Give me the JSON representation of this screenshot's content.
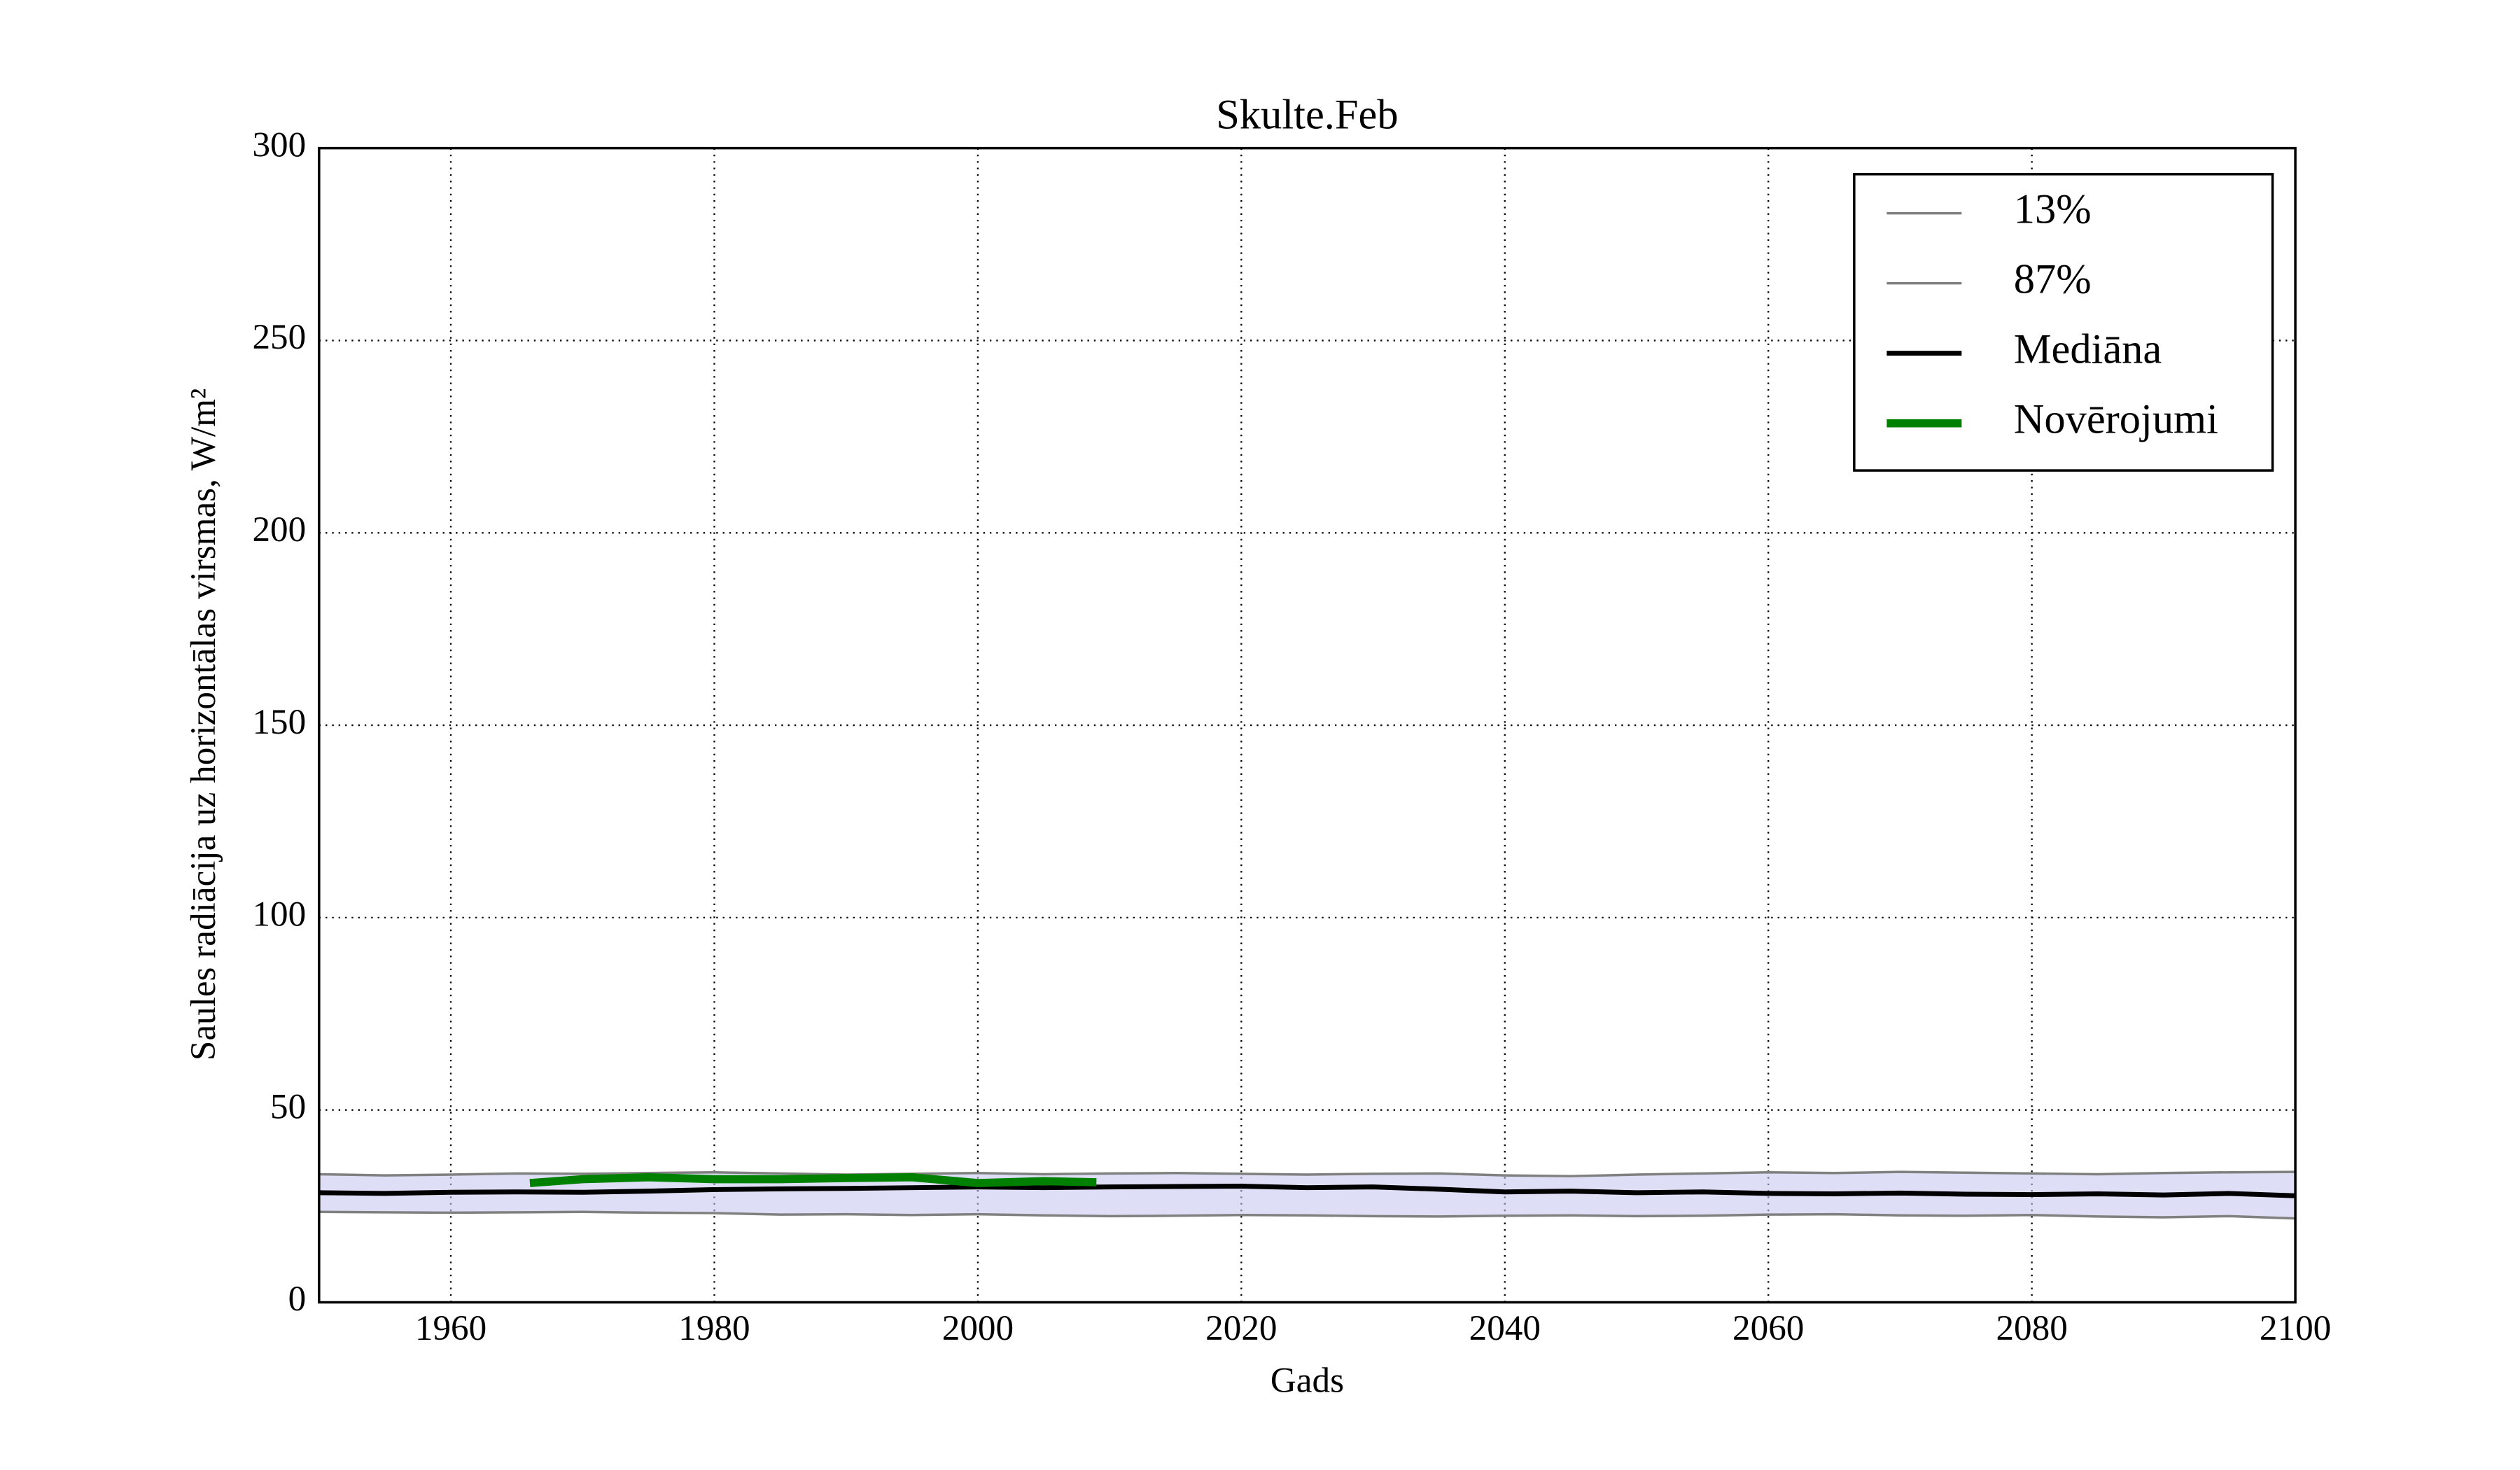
{
  "chart_data": {
    "type": "line",
    "title": "Skulte.Feb",
    "xlabel": "Gads",
    "ylabel": "Saules radiācija uz horizontālas virsmas, W/m²",
    "x": [
      1950,
      1955,
      1960,
      1965,
      1970,
      1975,
      1980,
      1985,
      1990,
      1995,
      2000,
      2005,
      2010,
      2015,
      2020,
      2025,
      2030,
      2035,
      2040,
      2045,
      2050,
      2055,
      2060,
      2065,
      2070,
      2075,
      2080,
      2085,
      2090,
      2095,
      2100
    ],
    "series": [
      {
        "name": "13%",
        "color": "#808080",
        "width": 1.5,
        "values": [
          23.5,
          23.4,
          23.3,
          23.4,
          23.5,
          23.3,
          23.2,
          22.8,
          22.9,
          22.7,
          22.9,
          22.6,
          22.4,
          22.5,
          22.7,
          22.6,
          22.4,
          22.3,
          22.5,
          22.6,
          22.4,
          22.5,
          22.8,
          22.9,
          22.6,
          22.5,
          22.7,
          22.3,
          22.1,
          22.4,
          21.8
        ]
      },
      {
        "name": "87%",
        "color": "#808080",
        "width": 1.5,
        "values": [
          33.3,
          33.0,
          33.2,
          33.5,
          33.4,
          33.6,
          33.8,
          33.5,
          33.2,
          33.4,
          33.6,
          33.3,
          33.5,
          33.6,
          33.4,
          33.2,
          33.4,
          33.5,
          33.0,
          32.8,
          33.2,
          33.5,
          33.8,
          33.6,
          33.9,
          33.7,
          33.5,
          33.3,
          33.6,
          33.8,
          33.9
        ]
      },
      {
        "name": "Mediāna",
        "color": "#000000",
        "width": 3,
        "values": [
          28.5,
          28.3,
          28.6,
          28.7,
          28.6,
          28.9,
          29.3,
          29.5,
          29.6,
          29.8,
          30.0,
          29.8,
          30.0,
          30.1,
          30.2,
          29.8,
          30.0,
          29.4,
          28.7,
          28.9,
          28.5,
          28.7,
          28.3,
          28.2,
          28.4,
          28.1,
          28.0,
          28.2,
          27.9,
          28.3,
          27.7
        ]
      },
      {
        "name": "Novērojumi",
        "color": "#008000",
        "width": 5,
        "x": [
          1966,
          1970,
          1975,
          1980,
          1985,
          1990,
          1995,
          2000,
          2005,
          2009
        ],
        "values": [
          31.0,
          32.0,
          32.5,
          32.0,
          32.0,
          32.3,
          32.5,
          31.0,
          31.5,
          31.2
        ]
      }
    ],
    "xlim": [
      1950,
      2100
    ],
    "xticks": [
      1960,
      1980,
      2000,
      2020,
      2040,
      2060,
      2080,
      2100
    ],
    "ylim": [
      0,
      300
    ],
    "yticks": [
      0,
      50,
      100,
      150,
      200,
      250,
      300
    ],
    "grid": true,
    "legend": "upper right"
  }
}
